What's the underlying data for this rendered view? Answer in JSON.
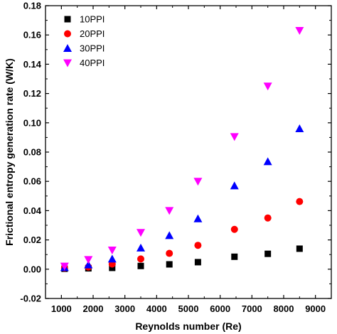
{
  "chart_data": {
    "type": "scatter",
    "title": "",
    "xlabel": "Reynolds number (Re)",
    "ylabel": "Frictional entropy generation rate (W/K)",
    "xlim": [
      500,
      9500
    ],
    "ylim": [
      -0.02,
      0.18
    ],
    "xticks": [
      1000,
      2000,
      3000,
      4000,
      5000,
      6000,
      7000,
      8000,
      9000
    ],
    "xtick_labels": [
      "1000",
      "2000",
      "3000",
      "4000",
      "5000",
      "6000",
      "7000",
      "8000",
      "9000"
    ],
    "yticks": [
      -0.02,
      0.0,
      0.02,
      0.04,
      0.06,
      0.08,
      0.1,
      0.12,
      0.14,
      0.16,
      0.18
    ],
    "ytick_labels": [
      "-0.02",
      "0.00",
      "0.02",
      "0.04",
      "0.06",
      "0.08",
      "0.10",
      "0.12",
      "0.14",
      "0.16",
      "0.18"
    ],
    "grid": false,
    "legend_position": "top-left",
    "series": [
      {
        "name": "10PPI",
        "marker": "square",
        "color": "#000000",
        "x": [
          1100,
          1850,
          2600,
          3500,
          4400,
          5300,
          6450,
          7500,
          8500
        ],
        "y": [
          0.0003,
          0.0006,
          0.0009,
          0.0022,
          0.0033,
          0.0048,
          0.0085,
          0.0105,
          0.014
        ]
      },
      {
        "name": "20PPI",
        "marker": "circle",
        "color": "#ff0000",
        "x": [
          1100,
          1850,
          2600,
          3500,
          4400,
          5300,
          6450,
          7500,
          8500
        ],
        "y": [
          0.0008,
          0.0015,
          0.0035,
          0.007,
          0.0108,
          0.0163,
          0.0272,
          0.035,
          0.0462
        ]
      },
      {
        "name": "30PPI",
        "marker": "triangle-up",
        "color": "#0000ff",
        "x": [
          1100,
          1850,
          2600,
          3500,
          4400,
          5300,
          6450,
          7500,
          8500
        ],
        "y": [
          0.0012,
          0.003,
          0.007,
          0.0145,
          0.023,
          0.0345,
          0.057,
          0.0735,
          0.096
        ]
      },
      {
        "name": "40PPI",
        "marker": "triangle-down",
        "color": "#ff00ff",
        "x": [
          1100,
          1850,
          2600,
          3500,
          4400,
          5300,
          6450,
          7500,
          8500
        ],
        "y": [
          0.002,
          0.0065,
          0.013,
          0.025,
          0.04,
          0.06,
          0.0905,
          0.125,
          0.163
        ]
      }
    ]
  }
}
